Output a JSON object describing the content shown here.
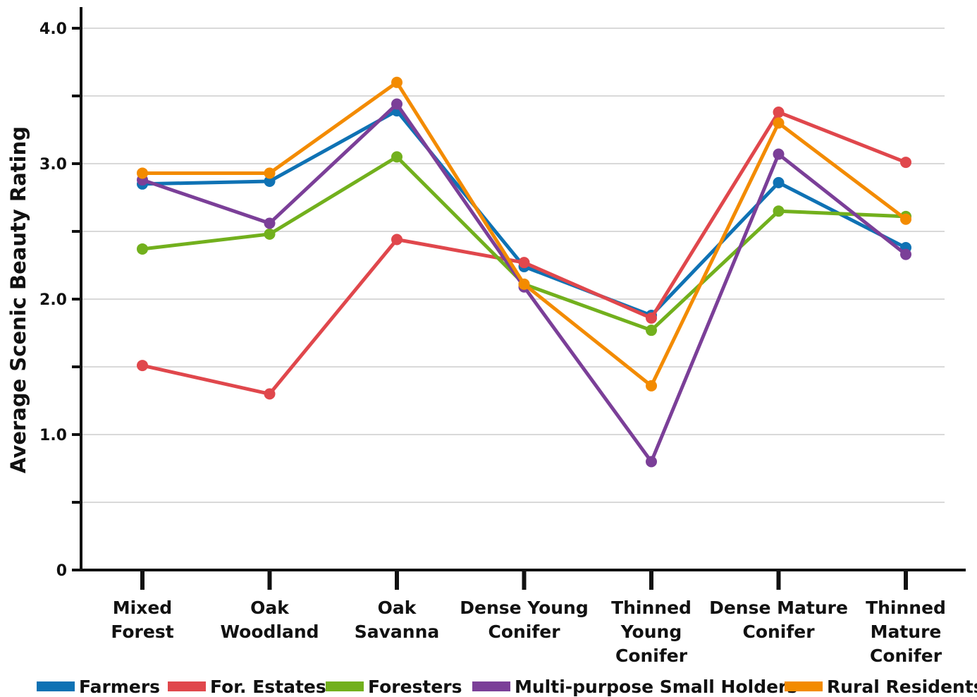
{
  "chart_data": {
    "type": "line",
    "title": "",
    "xlabel": "",
    "ylabel": "Average Scenic Beauty Rating",
    "ylim": [
      0,
      4.0
    ],
    "y_ticks": [
      {
        "value": 0,
        "label": "0"
      },
      {
        "value": 0.5,
        "label": ""
      },
      {
        "value": 1.0,
        "label": "1.0"
      },
      {
        "value": 1.5,
        "label": ""
      },
      {
        "value": 2.0,
        "label": "2.0"
      },
      {
        "value": 2.5,
        "label": ""
      },
      {
        "value": 3.0,
        "label": "3.0"
      },
      {
        "value": 3.5,
        "label": ""
      },
      {
        "value": 4.0,
        "label": "4.0"
      }
    ],
    "grid": true,
    "legend_position": "bottom",
    "categories": [
      [
        "Mixed",
        "Forest"
      ],
      [
        "Oak",
        "Woodland"
      ],
      [
        "Oak",
        "Savanna"
      ],
      [
        "Dense Young",
        "Conifer"
      ],
      [
        "Thinned",
        "Young",
        "Conifer"
      ],
      [
        "Dense Mature",
        "Conifer"
      ],
      [
        "Thinned",
        "Mature",
        "Conifer"
      ]
    ],
    "series": [
      {
        "name": "Farmers",
        "color": "#0f72b4",
        "values": [
          2.85,
          2.87,
          3.39,
          2.24,
          1.88,
          2.86,
          2.38
        ]
      },
      {
        "name": "For. Estates",
        "color": "#e0474c",
        "values": [
          1.51,
          1.3,
          2.44,
          2.27,
          1.86,
          3.38,
          3.01
        ]
      },
      {
        "name": "Foresters",
        "color": "#72b01d",
        "values": [
          2.37,
          2.48,
          3.05,
          2.11,
          1.77,
          2.65,
          2.61
        ]
      },
      {
        "name": "Multi-purpose Small Holders",
        "color": "#7b3f98",
        "values": [
          2.88,
          2.56,
          3.44,
          2.09,
          0.8,
          3.07,
          2.33
        ]
      },
      {
        "name": "Rural Residents",
        "color": "#f38b00",
        "values": [
          2.93,
          2.93,
          3.6,
          2.11,
          1.36,
          3.3,
          2.59
        ]
      }
    ]
  }
}
